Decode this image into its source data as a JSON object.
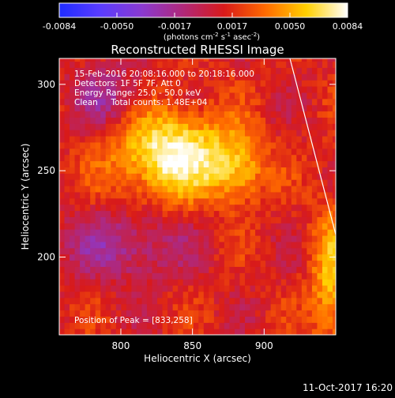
{
  "colorbar": {
    "stops": [
      "#1f2cff",
      "#5a3cff",
      "#8a3ad0",
      "#b0287a",
      "#d81a1a",
      "#ff6a00",
      "#ffd000",
      "#ffffff"
    ],
    "ticks": [
      "-0.0084",
      "-0.0050",
      "-0.0017",
      "0.0017",
      "0.0050",
      "0.0084"
    ],
    "unit_parts": [
      "(photons cm",
      "-2",
      " s",
      "-1",
      " asec",
      "-2",
      ")"
    ]
  },
  "chart_data": {
    "type": "heatmap",
    "title": "Reconstructed RHESSI Image",
    "xlabel": "Heliocentric X (arcsec)",
    "ylabel": "Heliocentric Y (arcsec)",
    "xlim": [
      757,
      950
    ],
    "ylim": [
      155,
      315
    ],
    "x_ticks": [
      800,
      850,
      900
    ],
    "y_ticks": [
      200,
      250,
      300
    ],
    "x_tick_labels": [
      "800",
      "850",
      "900"
    ],
    "y_tick_labels": [
      "200",
      "250",
      "300"
    ],
    "value_range": [
      -0.0084,
      0.0084
    ],
    "peak": [
      833,
      258
    ],
    "annotations": [
      "15-Feb-2016 20:08:16.000 to 20:18:16.000",
      "Detectors: 1F 5F 7F, Att 0",
      "Energy Range: 25.0 - 50.0 keV",
      "Clean     Total counts: 1.48E+04"
    ],
    "peak_label": "Position of Peak = [833,258]",
    "limb_line": [
      [
        918,
        315
      ],
      [
        950,
        213
      ]
    ]
  },
  "footer": {
    "timestamp": "11-Oct-2017 16:20"
  }
}
